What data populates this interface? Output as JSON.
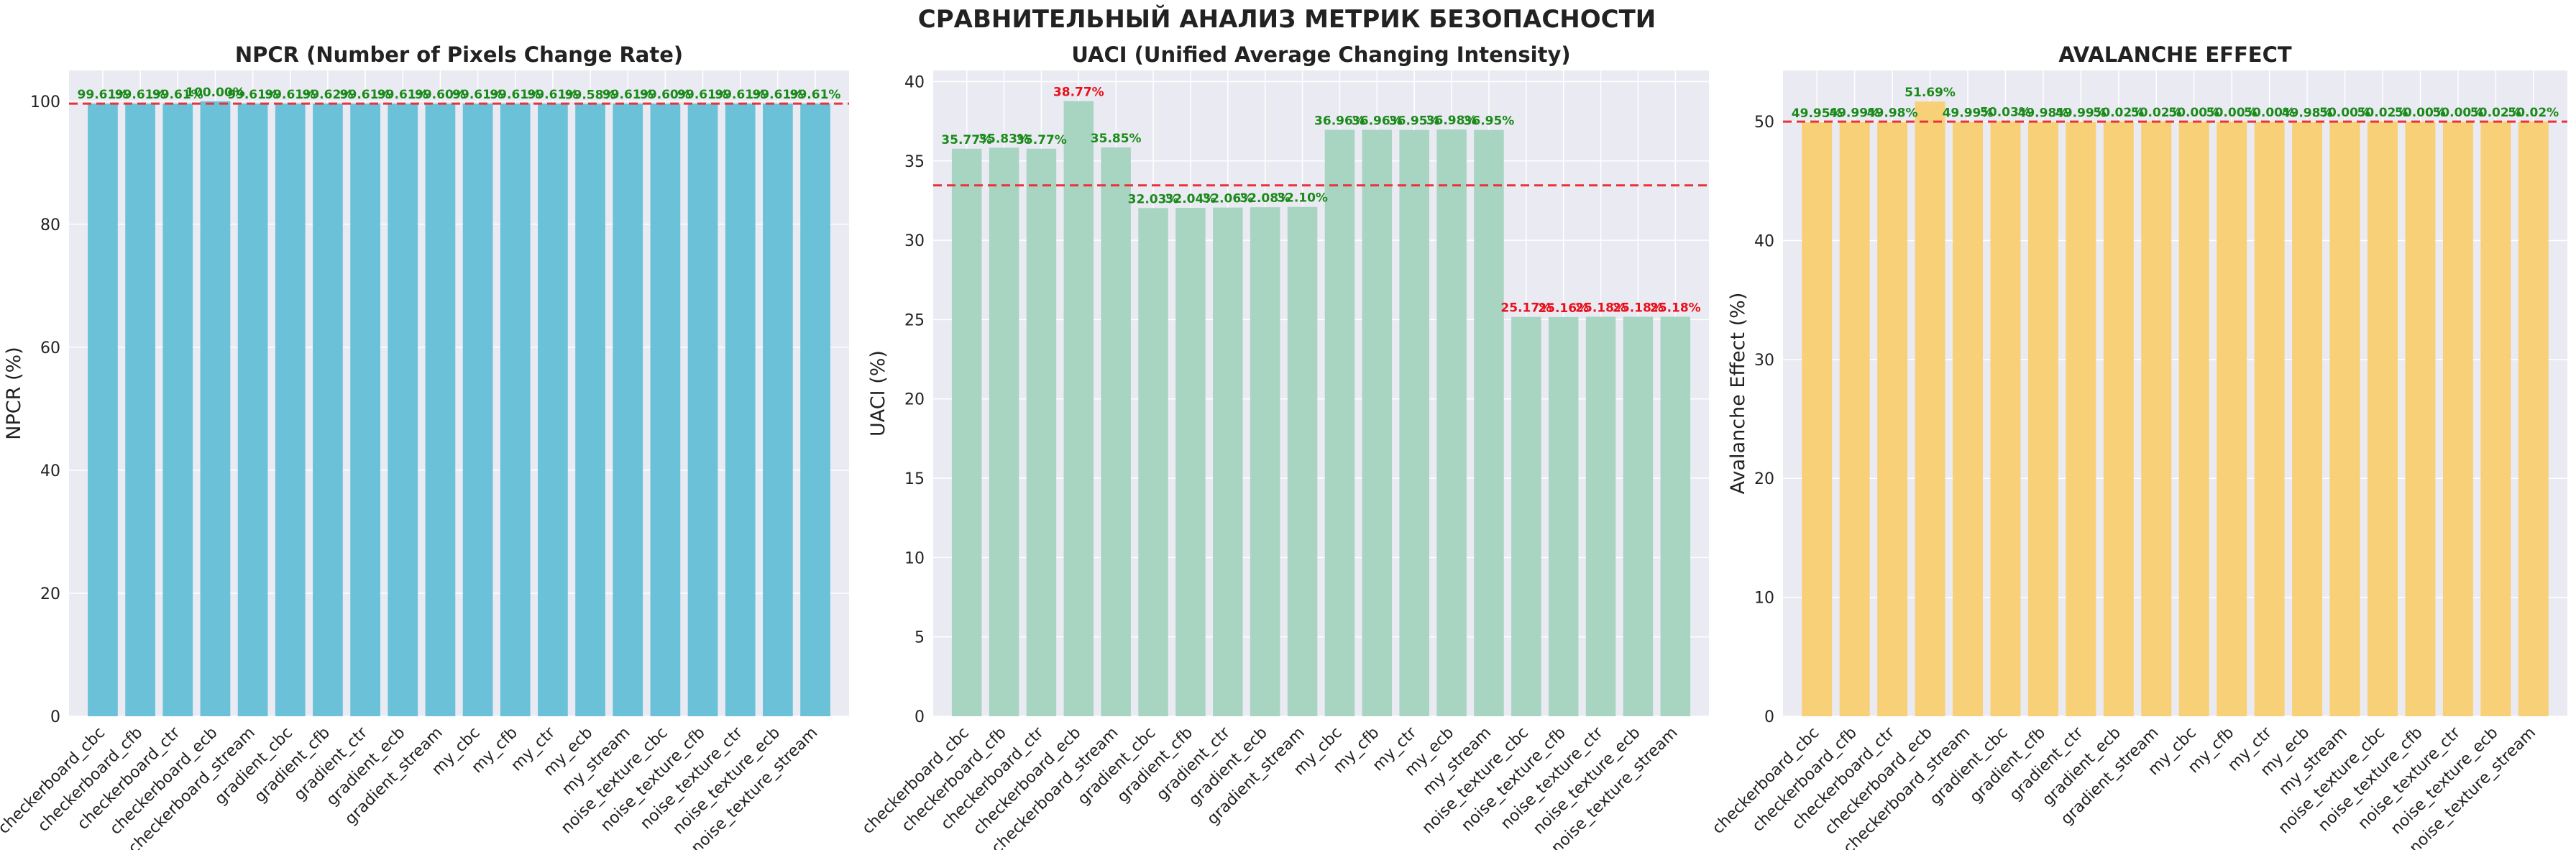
{
  "title": "СРАВНИТЕЛЬНЫЙ АНАЛИЗ МЕТРИК БЕЗОПАСНОСТИ",
  "categories": [
    "checkerboard_cbc",
    "checkerboard_cfb",
    "checkerboard_ctr",
    "checkerboard_ecb",
    "checkerboard_stream",
    "gradient_cbc",
    "gradient_cfb",
    "gradient_ctr",
    "gradient_ecb",
    "gradient_stream",
    "my_cbc",
    "my_cfb",
    "my_ctr",
    "my_ecb",
    "my_stream",
    "noise_texture_cbc",
    "noise_texture_cfb",
    "noise_texture_ctr",
    "noise_texture_ecb",
    "noise_texture_stream"
  ],
  "chart_data": [
    {
      "type": "bar",
      "title": "NPCR (Number of Pixels Change Rate)",
      "ylabel": "NPCR (%)",
      "ylim": [
        0,
        105
      ],
      "yticks": [
        0,
        20,
        40,
        60,
        80,
        100
      ],
      "reference_line": 99.61,
      "bar_color": "#6bc2d8",
      "values": [
        99.61,
        99.61,
        99.61,
        100.0,
        99.61,
        99.61,
        99.62,
        99.61,
        99.61,
        99.6,
        99.61,
        99.61,
        99.61,
        99.58,
        99.61,
        99.6,
        99.61,
        99.61,
        99.61,
        99.61
      ],
      "labels": [
        "99.61%",
        "99.61%",
        "99.61%",
        "100.00%",
        "99.61%",
        "99.61%",
        "99.62%",
        "99.61%",
        "99.61%",
        "99.60%",
        "99.61%",
        "99.61%",
        "99.61%",
        "99.58%",
        "99.61%",
        "99.60%",
        "99.61%",
        "99.61%",
        "99.61%",
        "99.61%"
      ],
      "label_colors": [
        "green",
        "green",
        "green",
        "green",
        "green",
        "green",
        "green",
        "green",
        "green",
        "green",
        "green",
        "green",
        "green",
        "green",
        "green",
        "green",
        "green",
        "green",
        "green",
        "green"
      ]
    },
    {
      "type": "bar",
      "title": "UACI (Unified Average Changing Intensity)",
      "ylabel": "UACI (%)",
      "ylim": [
        0,
        40.7
      ],
      "yticks": [
        0,
        5,
        10,
        15,
        20,
        25,
        30,
        35,
        40
      ],
      "reference_line": 33.46,
      "bar_color": "#a8d4c2",
      "values": [
        35.77,
        35.83,
        35.77,
        38.77,
        35.85,
        32.03,
        32.04,
        32.06,
        32.08,
        32.1,
        36.96,
        36.96,
        36.95,
        36.98,
        36.95,
        25.17,
        25.16,
        25.18,
        25.18,
        25.18
      ],
      "labels": [
        "35.77%",
        "35.83%",
        "35.77%",
        "38.77%",
        "35.85%",
        "32.03%",
        "32.04%",
        "32.06%",
        "32.08%",
        "32.10%",
        "36.96%",
        "36.96%",
        "36.95%",
        "36.98%",
        "36.95%",
        "25.17%",
        "25.16%",
        "25.18%",
        "25.18%",
        "25.18%"
      ],
      "label_colors": [
        "green",
        "green",
        "green",
        "red",
        "green",
        "green",
        "green",
        "green",
        "green",
        "green",
        "green",
        "green",
        "green",
        "green",
        "green",
        "red",
        "red",
        "red",
        "red",
        "red"
      ]
    },
    {
      "type": "bar",
      "title": "AVALANCHE EFFECT",
      "ylabel": "Avalanche Effect (%)",
      "ylim": [
        0,
        54.3
      ],
      "yticks": [
        0,
        10,
        20,
        30,
        40,
        50
      ],
      "reference_line": 50,
      "bar_color": "#f8d077",
      "values": [
        49.95,
        49.99,
        49.98,
        51.69,
        49.99,
        50.03,
        49.98,
        49.99,
        50.02,
        50.02,
        50.0,
        50.0,
        50.0,
        49.98,
        50.0,
        50.02,
        50.0,
        50.0,
        50.02,
        50.02
      ],
      "labels": [
        "49.95%",
        "49.99%",
        "49.98%",
        "51.69%",
        "49.99%",
        "50.03%",
        "49.98%",
        "49.99%",
        "50.02%",
        "50.02%",
        "50.00%",
        "50.00%",
        "50.00%",
        "49.98%",
        "50.00%",
        "50.02%",
        "50.00%",
        "50.00%",
        "50.02%",
        "50.02%"
      ],
      "label_colors": [
        "green",
        "green",
        "green",
        "green",
        "green",
        "green",
        "green",
        "green",
        "green",
        "green",
        "green",
        "green",
        "green",
        "green",
        "green",
        "green",
        "green",
        "green",
        "green",
        "green"
      ]
    }
  ],
  "colors": {
    "plot_bg": "#eaeaf2",
    "grid": "#ffffff",
    "reference_line": "#e8323c",
    "label_ok": "#1a8a1a",
    "label_bad": "#e8101a"
  }
}
